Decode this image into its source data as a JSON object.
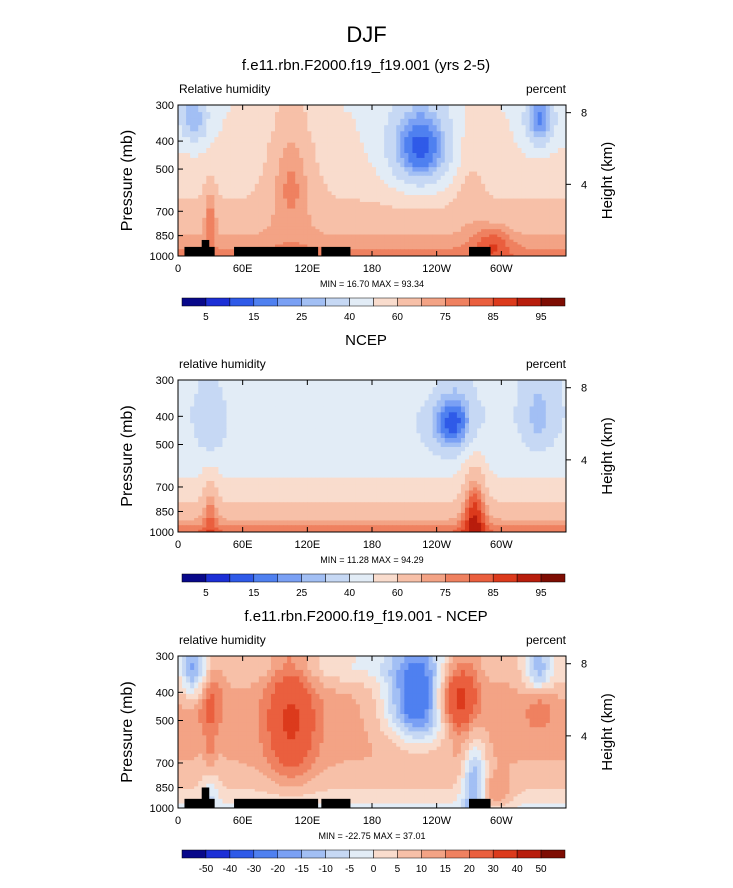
{
  "figure_title": "DJF",
  "chart_data": [
    {
      "type": "heatmap",
      "title": "f.e11.rbn.F2000.f19_f19.001 (yrs 2-5)",
      "left_string": "Relative humidity",
      "right_string": "percent",
      "ylabel": "Pressure (mb)",
      "ylabel_right": "Height (km)",
      "yticks": [
        "300",
        "400",
        "500",
        "700",
        "850",
        "1000"
      ],
      "yticks_right": [
        "8",
        "4"
      ],
      "xticks": [
        "0",
        "60E",
        "120E",
        "180",
        "120W",
        "60W"
      ],
      "min_max_text": "MIN = 16.70   MAX = 93.34",
      "colorbar_labels": [
        "5",
        "15",
        "25",
        "40",
        "60",
        "75",
        "85",
        "95"
      ],
      "levels": [
        5,
        10,
        15,
        20,
        25,
        30,
        40,
        50,
        60,
        70,
        75,
        80,
        85,
        90,
        95
      ],
      "palette": [
        "#08088a",
        "#1c2fd6",
        "#2f5ae8",
        "#4f80f0",
        "#7aa0f4",
        "#a2bff4",
        "#c6d8f4",
        "#e2ecf6",
        "#f9dccd",
        "#f7c0a8",
        "#f3a385",
        "#ef8160",
        "#ea5f3e",
        "#dc3a1c",
        "#b81d0c",
        "#7e0d03"
      ],
      "has_topography": true
    },
    {
      "type": "heatmap",
      "title": "NCEP",
      "left_string": "relative humidity",
      "right_string": "percent",
      "ylabel": "Pressure (mb)",
      "ylabel_right": "Height (km)",
      "yticks": [
        "300",
        "400",
        "500",
        "700",
        "850",
        "1000"
      ],
      "yticks_right": [
        "8",
        "4"
      ],
      "xticks": [
        "0",
        "60E",
        "120E",
        "180",
        "120W",
        "60W"
      ],
      "min_max_text": "MIN = 11.28   MAX = 94.29",
      "colorbar_labels": [
        "5",
        "15",
        "25",
        "40",
        "60",
        "75",
        "85",
        "95"
      ],
      "levels": [
        5,
        10,
        15,
        20,
        25,
        30,
        40,
        50,
        60,
        70,
        75,
        80,
        85,
        90,
        95
      ],
      "palette": [
        "#08088a",
        "#1c2fd6",
        "#2f5ae8",
        "#4f80f0",
        "#7aa0f4",
        "#a2bff4",
        "#c6d8f4",
        "#e2ecf6",
        "#f9dccd",
        "#f7c0a8",
        "#f3a385",
        "#ef8160",
        "#ea5f3e",
        "#dc3a1c",
        "#b81d0c",
        "#7e0d03"
      ],
      "has_topography": false
    },
    {
      "type": "heatmap",
      "title": "f.e11.rbn.F2000.f19_f19.001 - NCEP",
      "left_string": "relative humidity",
      "right_string": "percent",
      "ylabel": "Pressure (mb)",
      "ylabel_right": "Height (km)",
      "yticks": [
        "300",
        "400",
        "500",
        "700",
        "850",
        "1000"
      ],
      "yticks_right": [
        "8",
        "4"
      ],
      "xticks": [
        "0",
        "60E",
        "120E",
        "180",
        "120W",
        "60W"
      ],
      "min_max_text": "MIN = -22.75   MAX = 37.01",
      "colorbar_labels": [
        "-50",
        "-40",
        "-30",
        "-20",
        "-15",
        "-10",
        "-5",
        "0",
        "5",
        "10",
        "15",
        "20",
        "30",
        "40",
        "50"
      ],
      "levels": [
        -50,
        -40,
        -30,
        -20,
        -15,
        -10,
        -5,
        0,
        5,
        10,
        15,
        20,
        30,
        40,
        50
      ],
      "palette": [
        "#08088a",
        "#1c2fd6",
        "#2f5ae8",
        "#4f80f0",
        "#7aa0f4",
        "#a2bff4",
        "#c6d8f4",
        "#e2ecf6",
        "#f9dccd",
        "#f7c0a8",
        "#f3a385",
        "#ef8160",
        "#ea5f3e",
        "#dc3a1c",
        "#b81d0c",
        "#7e0d03"
      ],
      "has_topography": true
    }
  ]
}
